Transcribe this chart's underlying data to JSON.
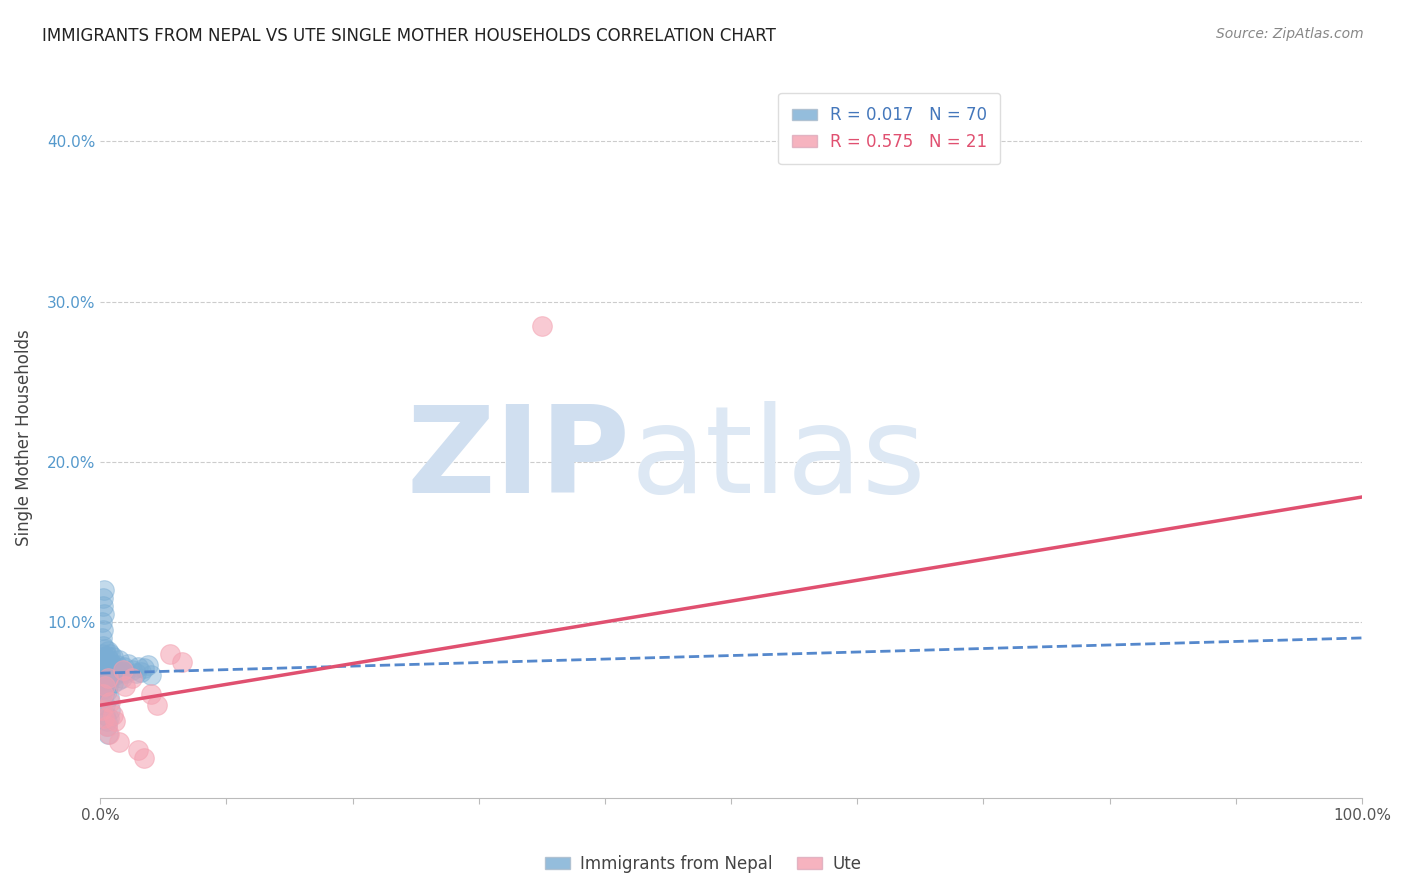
{
  "title": "IMMIGRANTS FROM NEPAL VS UTE SINGLE MOTHER HOUSEHOLDS CORRELATION CHART",
  "source": "Source: ZipAtlas.com",
  "ylabel": "Single Mother Households",
  "xlim": [
    0,
    1.0
  ],
  "ylim": [
    -0.01,
    0.44
  ],
  "xticks": [
    0.0,
    0.1,
    0.2,
    0.3,
    0.4,
    0.5,
    0.6,
    0.7,
    0.8,
    0.9,
    1.0
  ],
  "yticks": [
    0.0,
    0.1,
    0.2,
    0.3,
    0.4
  ],
  "ytick_labels": [
    "",
    "10.0%",
    "20.0%",
    "30.0%",
    "40.0%"
  ],
  "xtick_labels": [
    "0.0%",
    "",
    "",
    "",
    "",
    "",
    "",
    "",
    "",
    "",
    "100.0%"
  ],
  "color_nepal": "#7aadd4",
  "color_ute": "#f4a0b0",
  "color_nepal_line": "#5588cc",
  "color_ute_line": "#e05070",
  "watermark_top": "ZIP",
  "watermark_bot": "atlas",
  "watermark_color": "#d0dff0",
  "nepal_x": [
    0.001,
    0.001,
    0.001,
    0.001,
    0.001,
    0.002,
    0.002,
    0.002,
    0.002,
    0.002,
    0.002,
    0.003,
    0.003,
    0.003,
    0.003,
    0.003,
    0.004,
    0.004,
    0.004,
    0.004,
    0.005,
    0.005,
    0.005,
    0.005,
    0.006,
    0.006,
    0.006,
    0.006,
    0.007,
    0.007,
    0.007,
    0.008,
    0.008,
    0.008,
    0.009,
    0.009,
    0.01,
    0.01,
    0.011,
    0.012,
    0.013,
    0.014,
    0.015,
    0.016,
    0.017,
    0.018,
    0.019,
    0.02,
    0.022,
    0.025,
    0.028,
    0.03,
    0.032,
    0.035,
    0.038,
    0.04,
    0.001,
    0.001,
    0.002,
    0.002,
    0.002,
    0.003,
    0.003,
    0.004,
    0.004,
    0.005,
    0.005,
    0.006,
    0.007,
    0.008
  ],
  "nepal_y": [
    0.065,
    0.07,
    0.075,
    0.08,
    0.06,
    0.068,
    0.072,
    0.076,
    0.063,
    0.058,
    0.085,
    0.066,
    0.074,
    0.069,
    0.078,
    0.055,
    0.071,
    0.077,
    0.064,
    0.083,
    0.073,
    0.067,
    0.079,
    0.057,
    0.075,
    0.07,
    0.082,
    0.06,
    0.068,
    0.076,
    0.053,
    0.072,
    0.065,
    0.08,
    0.069,
    0.074,
    0.078,
    0.062,
    0.071,
    0.067,
    0.073,
    0.064,
    0.076,
    0.07,
    0.065,
    0.069,
    0.072,
    0.068,
    0.074,
    0.07,
    0.068,
    0.072,
    0.069,
    0.071,
    0.073,
    0.067,
    0.09,
    0.1,
    0.095,
    0.11,
    0.115,
    0.105,
    0.12,
    0.048,
    0.042,
    0.038,
    0.035,
    0.03,
    0.04,
    0.045
  ],
  "ute_x": [
    0.001,
    0.002,
    0.003,
    0.004,
    0.005,
    0.006,
    0.007,
    0.008,
    0.01,
    0.012,
    0.015,
    0.018,
    0.02,
    0.025,
    0.03,
    0.035,
    0.04,
    0.045,
    0.055,
    0.065,
    0.35
  ],
  "ute_y": [
    0.045,
    0.055,
    0.04,
    0.06,
    0.035,
    0.065,
    0.03,
    0.05,
    0.042,
    0.038,
    0.025,
    0.07,
    0.06,
    0.065,
    0.02,
    0.015,
    0.055,
    0.048,
    0.08,
    0.075,
    0.285
  ],
  "nepal_trend_x": [
    0.0,
    1.0
  ],
  "nepal_trend_y": [
    0.068,
    0.09
  ],
  "ute_trend_x": [
    0.0,
    1.0
  ],
  "ute_trend_y": [
    0.048,
    0.178
  ]
}
